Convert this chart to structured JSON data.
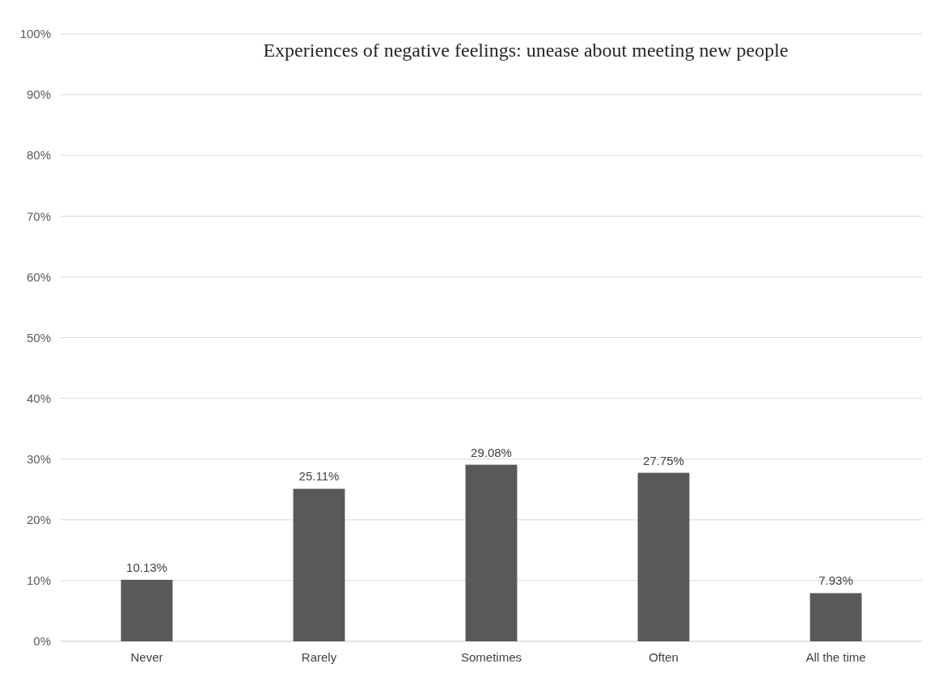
{
  "chart_data": {
    "type": "bar",
    "title": "Experiences of negative feelings: unease about meeting new people",
    "categories": [
      "Never",
      "Rarely",
      "Sometimes",
      "Often",
      "All the time"
    ],
    "values": [
      10.13,
      25.11,
      29.08,
      27.75,
      7.93
    ],
    "value_labels": [
      "10.13%",
      "25.11%",
      "29.08%",
      "27.75%",
      "7.93%"
    ],
    "color": "#595959",
    "ylim": [
      0,
      100
    ],
    "yticks": [
      {
        "value": 0,
        "label": "0%"
      },
      {
        "value": 10,
        "label": "10%"
      },
      {
        "value": 20,
        "label": "20%"
      },
      {
        "value": 30,
        "label": "30%"
      },
      {
        "value": 40,
        "label": "40%"
      },
      {
        "value": 50,
        "label": "50%"
      },
      {
        "value": 60,
        "label": "60%"
      },
      {
        "value": 70,
        "label": "70%"
      },
      {
        "value": 80,
        "label": "80%"
      },
      {
        "value": 90,
        "label": "90%"
      },
      {
        "value": 100,
        "label": "100%"
      }
    ],
    "grid": "y"
  }
}
